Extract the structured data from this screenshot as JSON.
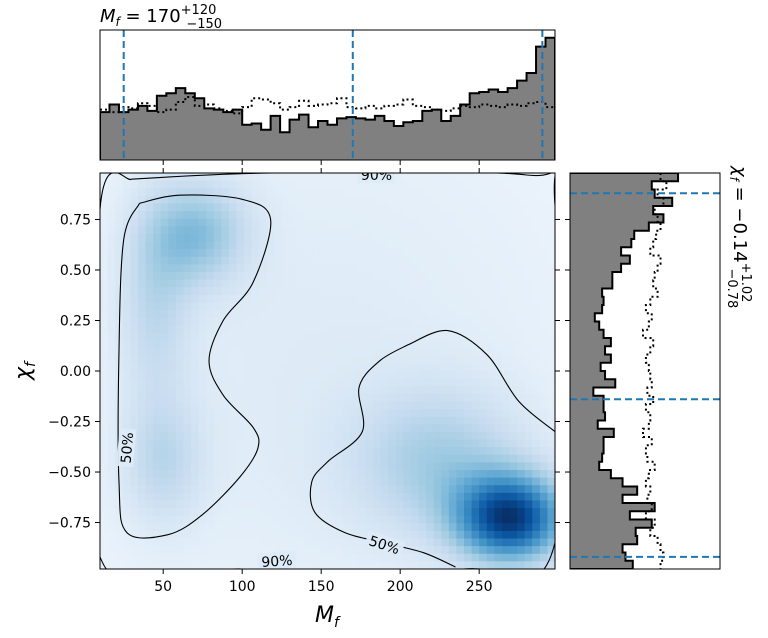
{
  "chart_data": {
    "type": "corner-2d",
    "top_title": {
      "base": "M",
      "sub": "f",
      "eq": " = ",
      "value": "170",
      "upper": "+120",
      "lower": "−150"
    },
    "right_title": {
      "base": "χ",
      "sub": "f",
      "eq": " = ",
      "value": "−0.14",
      "upper": "+1.02",
      "lower": "−0.78"
    },
    "xlabel": {
      "base": "M",
      "sub": "f"
    },
    "ylabel": {
      "base": "χ",
      "sub": "f"
    },
    "xlim": [
      10,
      298
    ],
    "ylim": [
      -0.98,
      0.98
    ],
    "xticks": [
      {
        "value": 50,
        "label": "50"
      },
      {
        "value": 100,
        "label": "100"
      },
      {
        "value": 150,
        "label": "150"
      },
      {
        "value": 200,
        "label": "200"
      },
      {
        "value": 250,
        "label": "250"
      }
    ],
    "yticks": [
      {
        "value": 0.75,
        "label": "0.75"
      },
      {
        "value": 0.5,
        "label": "0.50"
      },
      {
        "value": 0.25,
        "label": "0.25"
      },
      {
        "value": 0.0,
        "label": "0.00"
      },
      {
        "value": -0.25,
        "label": "−0.25"
      },
      {
        "value": -0.5,
        "label": "−0.50"
      },
      {
        "value": -0.75,
        "label": "−0.75"
      }
    ],
    "density_blobs": [
      {
        "x": 72,
        "y": 0.68,
        "sx": 22,
        "sy": 0.18,
        "w": 0.38
      },
      {
        "x": 45,
        "y": 0.35,
        "sx": 16,
        "sy": 0.35,
        "w": 0.22
      },
      {
        "x": 50,
        "y": -0.45,
        "sx": 18,
        "sy": 0.22,
        "w": 0.22
      },
      {
        "x": 270,
        "y": -0.73,
        "sx": 24,
        "sy": 0.15,
        "w": 1.0
      },
      {
        "x": 225,
        "y": -0.45,
        "sx": 38,
        "sy": 0.25,
        "w": 0.3
      },
      {
        "x": 150,
        "y": 0.0,
        "sx": 140,
        "sy": 1.2,
        "w": 0.12
      }
    ],
    "contours": [
      {
        "label": "90%",
        "points": [
          [
            30,
            0.95
          ],
          [
            120,
            0.98
          ],
          [
            280,
            0.97
          ],
          [
            298,
            0.82
          ],
          [
            298,
            -0.85
          ],
          [
            240,
            -0.98
          ],
          [
            100,
            -0.98
          ],
          [
            10,
            -0.92
          ],
          [
            10,
            0.8
          ],
          [
            30,
            0.95
          ]
        ],
        "labels_at": [
          [
            185,
            0.97
          ],
          [
            122,
            -0.94
          ]
        ]
      },
      {
        "label": "50%",
        "points": [
          [
            35,
            0.83
          ],
          [
            60,
            0.87
          ],
          [
            100,
            0.85
          ],
          [
            118,
            0.75
          ],
          [
            107,
            0.44
          ],
          [
            88,
            0.25
          ],
          [
            79,
            0.05
          ],
          [
            88,
            -0.12
          ],
          [
            107,
            -0.28
          ],
          [
            110,
            -0.38
          ],
          [
            99,
            -0.52
          ],
          [
            75,
            -0.71
          ],
          [
            53,
            -0.81
          ],
          [
            27,
            -0.8
          ],
          [
            22,
            -0.55
          ],
          [
            22,
            0.1
          ],
          [
            25,
            0.65
          ],
          [
            35,
            0.83
          ]
        ],
        "labels_at": [
          [
            27,
            -0.38
          ]
        ]
      },
      {
        "label": "50%",
        "points": [
          [
            205,
            0.13
          ],
          [
            230,
            0.2
          ],
          [
            255,
            0.08
          ],
          [
            275,
            -0.15
          ],
          [
            298,
            -0.3
          ]
        ],
        "labels_at": []
      },
      {
        "label": "50%",
        "points": [
          [
            205,
            0.13
          ],
          [
            187,
            0.05
          ],
          [
            174,
            -0.08
          ],
          [
            176,
            -0.3
          ],
          [
            154,
            -0.45
          ],
          [
            144,
            -0.55
          ],
          [
            146,
            -0.7
          ],
          [
            165,
            -0.8
          ],
          [
            190,
            -0.85
          ],
          [
            215,
            -0.9
          ],
          [
            235,
            -0.97
          ]
        ],
        "labels_at": [
          [
            190,
            -0.86
          ]
        ]
      }
    ],
    "top_hist": {
      "bins": 48,
      "values": [
        0.38,
        0.44,
        0.38,
        0.4,
        0.43,
        0.39,
        0.51,
        0.53,
        0.57,
        0.53,
        0.49,
        0.41,
        0.4,
        0.38,
        0.4,
        0.28,
        0.29,
        0.24,
        0.35,
        0.22,
        0.32,
        0.36,
        0.26,
        0.31,
        0.28,
        0.33,
        0.34,
        0.33,
        0.32,
        0.35,
        0.31,
        0.27,
        0.3,
        0.31,
        0.39,
        0.4,
        0.31,
        0.35,
        0.44,
        0.53,
        0.54,
        0.56,
        0.54,
        0.57,
        0.63,
        0.69,
        0.9,
        0.97
      ],
      "prior": [
        0.4,
        0.38,
        0.42,
        0.41,
        0.45,
        0.43,
        0.38,
        0.4,
        0.46,
        0.5,
        0.43,
        0.44,
        0.41,
        0.39,
        0.37,
        0.42,
        0.49,
        0.48,
        0.45,
        0.4,
        0.42,
        0.47,
        0.43,
        0.44,
        0.45,
        0.49,
        0.42,
        0.41,
        0.43,
        0.41,
        0.43,
        0.44,
        0.48,
        0.43,
        0.42,
        0.4,
        0.39,
        0.41,
        0.43,
        0.42,
        0.44,
        0.43,
        0.42,
        0.44,
        0.43,
        0.45,
        0.46,
        0.42
      ],
      "quantiles": [
        25,
        170,
        290
      ]
    },
    "right_hist": {
      "bins": 48,
      "values": [
        0.74,
        0.56,
        0.58,
        0.7,
        0.57,
        0.64,
        0.54,
        0.44,
        0.42,
        0.35,
        0.41,
        0.35,
        0.29,
        0.29,
        0.22,
        0.23,
        0.22,
        0.17,
        0.2,
        0.23,
        0.28,
        0.24,
        0.28,
        0.21,
        0.24,
        0.31,
        0.16,
        0.23,
        0.23,
        0.24,
        0.19,
        0.3,
        0.23,
        0.23,
        0.22,
        0.2,
        0.28,
        0.36,
        0.46,
        0.36,
        0.58,
        0.41,
        0.56,
        0.45,
        0.46,
        0.36,
        0.38,
        0.43
      ],
      "prior": [
        0.62,
        0.66,
        0.6,
        0.64,
        0.58,
        0.6,
        0.62,
        0.59,
        0.57,
        0.55,
        0.62,
        0.6,
        0.58,
        0.57,
        0.6,
        0.55,
        0.52,
        0.56,
        0.54,
        0.5,
        0.57,
        0.55,
        0.52,
        0.54,
        0.55,
        0.56,
        0.53,
        0.57,
        0.52,
        0.55,
        0.54,
        0.5,
        0.56,
        0.52,
        0.53,
        0.58,
        0.54,
        0.52,
        0.55,
        0.53,
        0.56,
        0.52,
        0.58,
        0.55,
        0.6,
        0.62,
        0.64,
        0.62
      ],
      "quantiles": [
        -0.92,
        -0.14,
        0.88
      ]
    }
  }
}
